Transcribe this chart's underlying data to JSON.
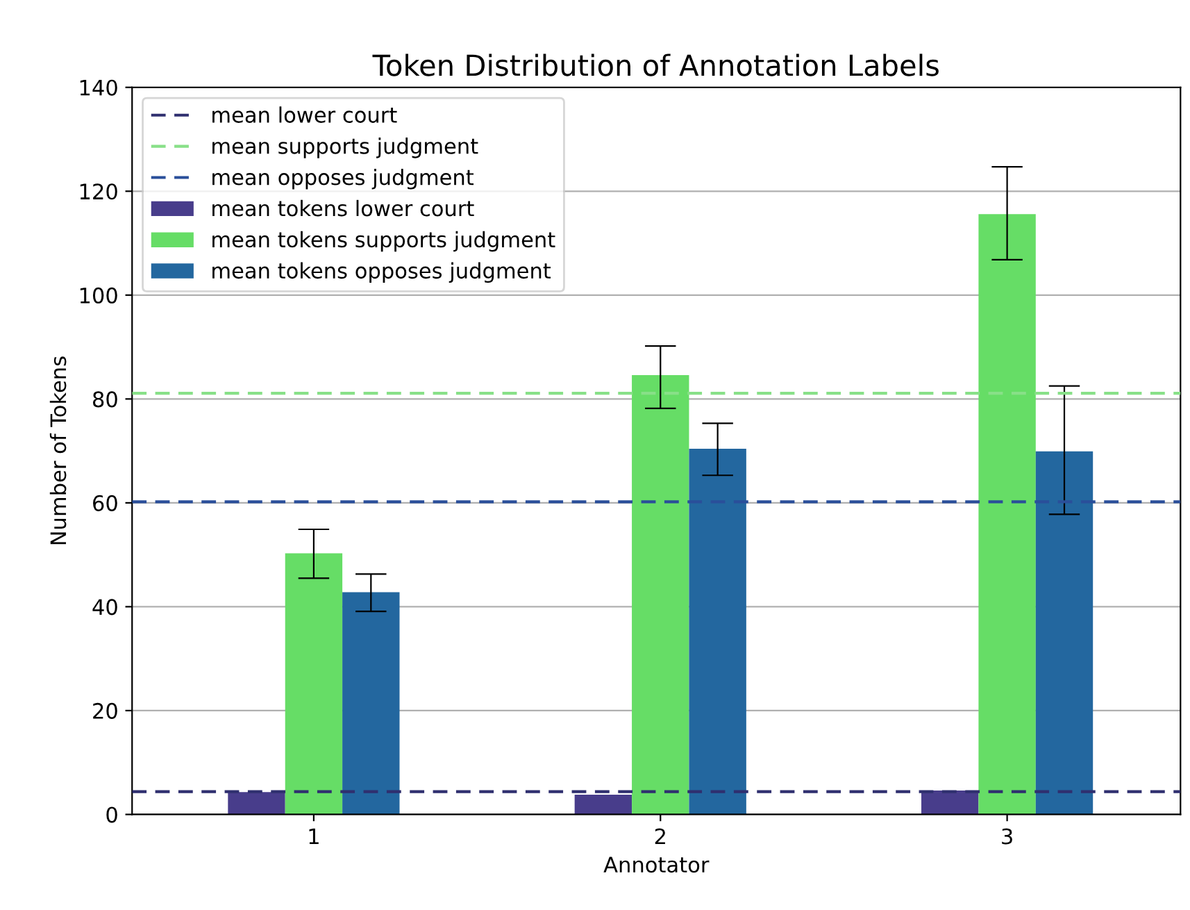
{
  "chart_data": {
    "type": "bar",
    "title": "Token Distribution of Annotation Labels",
    "xlabel": "Annotator",
    "ylabel": "Number of Tokens",
    "categories": [
      "1",
      "2",
      "3"
    ],
    "series": [
      {
        "name": "mean tokens lower court",
        "color": "#483d8b",
        "values": [
          4.3,
          3.8,
          4.6
        ],
        "errors": [
          null,
          null,
          null
        ]
      },
      {
        "name": "mean tokens supports judgment",
        "color": "#66dd66",
        "values": [
          50.3,
          84.6,
          115.6
        ],
        "errors": [
          [
            45.5,
            54.9
          ],
          [
            78.2,
            90.2
          ],
          [
            106.8,
            124.7
          ]
        ]
      },
      {
        "name": "mean tokens opposes judgment",
        "color": "#23679f",
        "values": [
          42.8,
          70.4,
          69.9
        ],
        "errors": [
          [
            39.1,
            46.3
          ],
          [
            65.3,
            75.3
          ],
          [
            57.8,
            82.5
          ]
        ]
      }
    ],
    "ref_lines": [
      {
        "axis": "y",
        "value": 4.4,
        "label": "mean lower court",
        "color": "#2f2f6f",
        "line_style": "dashed"
      },
      {
        "axis": "y",
        "value": 81.1,
        "label": "mean supports judgment",
        "color": "#88e088",
        "line_style": "dashed"
      },
      {
        "axis": "y",
        "value": 60.2,
        "label": "mean opposes judgment",
        "color": "#2a4f9a",
        "line_style": "dashed"
      }
    ],
    "ylim": [
      0,
      140
    ],
    "yticks": [
      0,
      20,
      40,
      60,
      80,
      100,
      120,
      140
    ],
    "grid": "y",
    "legend": "top left"
  }
}
